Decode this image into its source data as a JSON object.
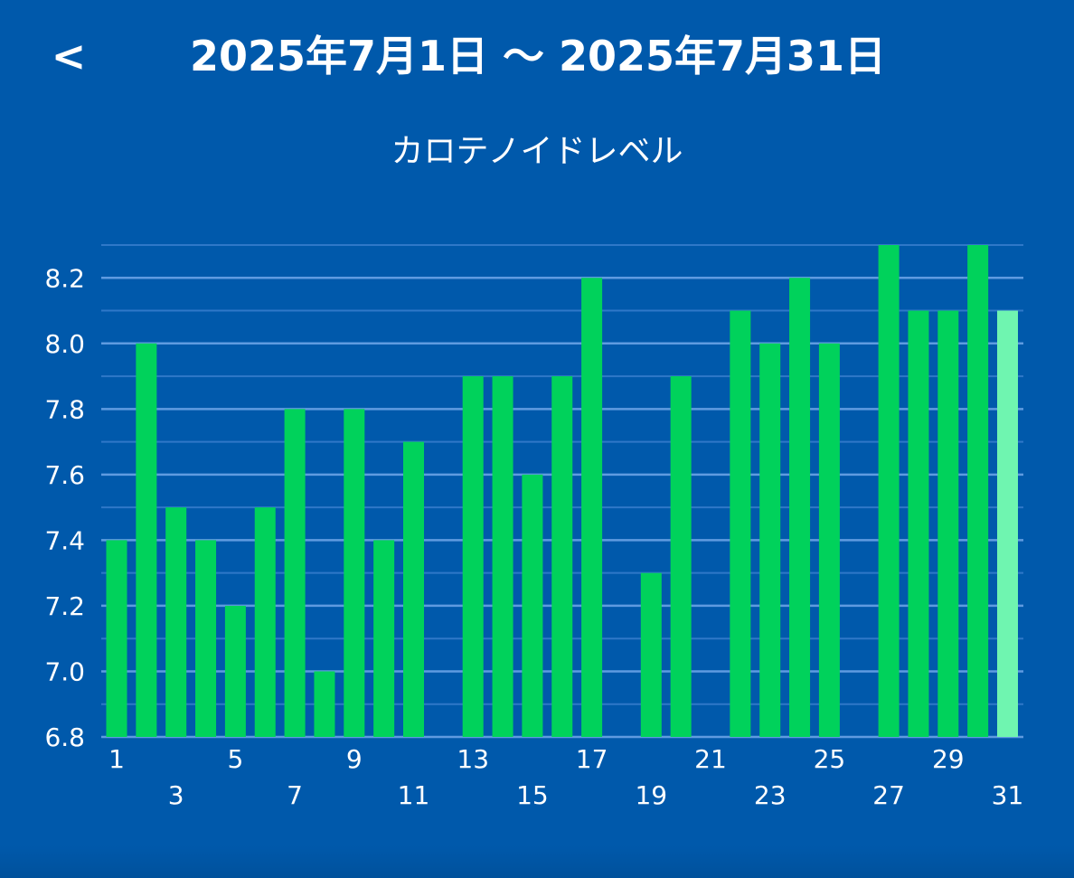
{
  "header": {
    "back_label": "<",
    "date_range": "2025年7月1日 〜 2025年7月31日"
  },
  "chart_title": "カロテノイドレベル",
  "colors": {
    "background": "#0059ab",
    "bar": "#00d25b",
    "bar_selected": "#6ff5b0",
    "grid_major": "#5f9be0",
    "grid_minor": "#2f78c8",
    "text": "#ffffff"
  },
  "chart_data": {
    "type": "bar",
    "title": "カロテノイドレベル",
    "xlabel": "",
    "ylabel": "",
    "ylim": [
      6.8,
      8.3
    ],
    "yticks": [
      6.8,
      7.0,
      7.2,
      7.4,
      7.6,
      7.8,
      8.0,
      8.2
    ],
    "ytick_labels": [
      "6.8",
      "7.0",
      "7.2",
      "7.4",
      "7.6",
      "7.8",
      "8.0",
      "8.2"
    ],
    "grid": true,
    "categories": [
      "1",
      "2",
      "3",
      "4",
      "5",
      "6",
      "7",
      "8",
      "9",
      "10",
      "11",
      "12",
      "13",
      "14",
      "15",
      "16",
      "17",
      "18",
      "19",
      "20",
      "21",
      "22",
      "23",
      "24",
      "25",
      "26",
      "27",
      "28",
      "29",
      "30",
      "31"
    ],
    "x_tick_labels_top": [
      "1",
      "5",
      "9",
      "13",
      "17",
      "21",
      "25",
      "29"
    ],
    "x_tick_labels_bottom": [
      "3",
      "7",
      "11",
      "15",
      "19",
      "23",
      "27",
      "31"
    ],
    "values": [
      7.4,
      8.0,
      7.5,
      7.4,
      7.2,
      7.5,
      7.8,
      7.0,
      7.8,
      7.4,
      7.7,
      null,
      7.9,
      7.9,
      7.6,
      7.9,
      8.2,
      null,
      7.3,
      7.9,
      null,
      8.1,
      8.0,
      8.2,
      8.0,
      null,
      8.3,
      8.1,
      8.1,
      8.3,
      8.1
    ],
    "selected_index": 30
  }
}
